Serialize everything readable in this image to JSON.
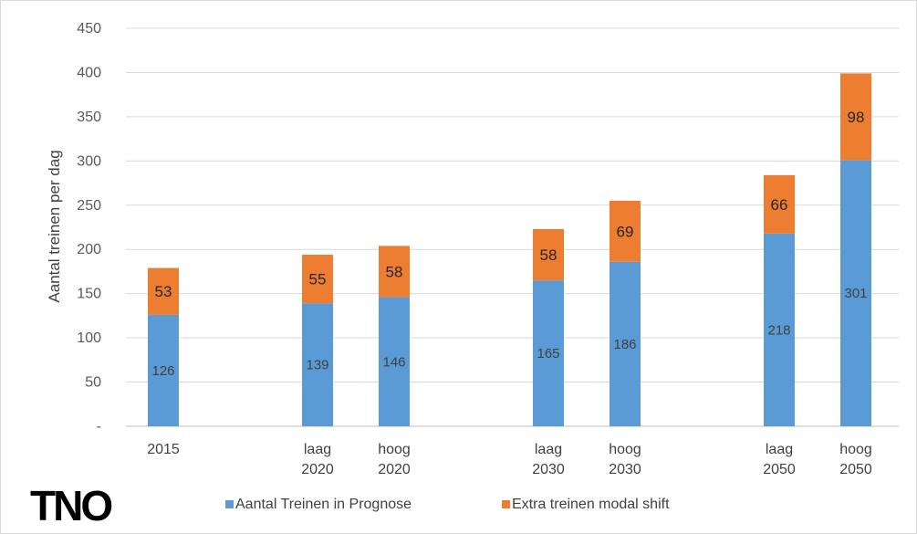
{
  "chart_data": {
    "type": "bar",
    "stacked": true,
    "ylabel": "Aantal treinen per dag",
    "ylim": [
      0,
      450
    ],
    "yticks": [
      "-",
      "50",
      "100",
      "150",
      "200",
      "250",
      "300",
      "350",
      "400",
      "450"
    ],
    "grid": true,
    "legend_position": "bottom",
    "categories": [
      [
        "2015"
      ],
      [
        "laag",
        "2020"
      ],
      [
        "hoog",
        "2020"
      ],
      [
        "laag",
        "2030"
      ],
      [
        "hoog",
        "2030"
      ],
      [
        "laag",
        "2050"
      ],
      [
        "hoog",
        "2050"
      ]
    ],
    "series": [
      {
        "name": "Aantal Treinen in Prognose",
        "color": "#5b9bd5",
        "values": [
          126,
          139,
          146,
          165,
          186,
          218,
          301
        ]
      },
      {
        "name": "Extra treinen modal shift",
        "color": "#ed7d31",
        "values": [
          53,
          55,
          58,
          58,
          69,
          66,
          98
        ]
      }
    ]
  },
  "logo": {
    "text": "TNO"
  }
}
